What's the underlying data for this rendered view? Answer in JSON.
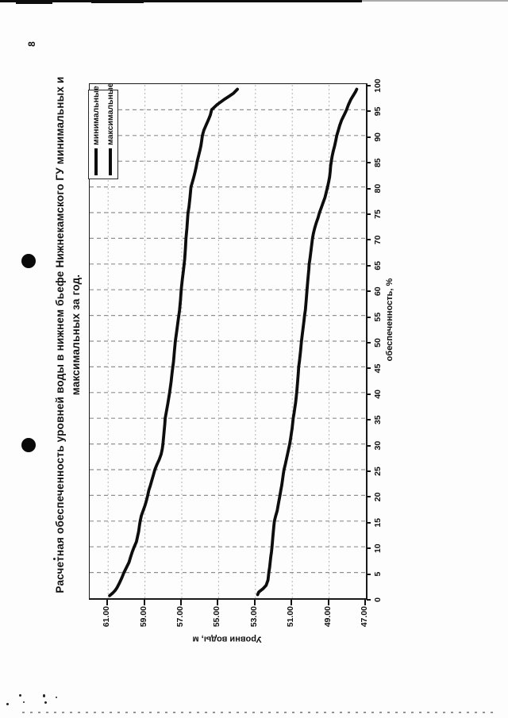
{
  "page": {
    "number": "8"
  },
  "chart_data": {
    "type": "line",
    "title": "Расчетная обеспеченность уровней воды в нижнем бьефе Нижнекамского ГУ  минимальных и максимальных за год.",
    "title_lines": [
      "Расчетная обеспеченность уровней воды в нижнем бьефе Нижнекамского ГУ  минимальных и",
      "максимальных за год."
    ],
    "xlabel": "обеспеченность, %",
    "ylabel": "Уровни воды, м",
    "xlim": [
      0,
      100
    ],
    "ylim": [
      47,
      62
    ],
    "x_ticks": [
      0,
      5,
      10,
      15,
      20,
      25,
      30,
      35,
      40,
      45,
      50,
      55,
      60,
      65,
      70,
      75,
      80,
      85,
      90,
      95,
      100
    ],
    "y_ticks": [
      61,
      59,
      57,
      55,
      53,
      51,
      49,
      47
    ],
    "y_tick_labels": [
      "61.00",
      "59.00",
      "57.00",
      "55.00",
      "53.00",
      "51.00",
      "49.00",
      "47.00"
    ],
    "grid": "on",
    "legend_position": "top-right-inside",
    "colors": {
      "ink": "#0d0d0d",
      "grid_dashed": "#8f8f8f",
      "grid_dotted": "#b3b3b3",
      "background": "#fdfdfd"
    },
    "series": [
      {
        "name": "минимальные",
        "points": [
          [
            0.7,
            52.88
          ],
          [
            1.2,
            52.82
          ],
          [
            1.8,
            52.6
          ],
          [
            2.5,
            52.42
          ],
          [
            3.5,
            52.32
          ],
          [
            5,
            52.27
          ],
          [
            6,
            52.23
          ],
          [
            7,
            52.2
          ],
          [
            8,
            52.17
          ],
          [
            9,
            52.13
          ],
          [
            10,
            52.1
          ],
          [
            12,
            52.05
          ],
          [
            14,
            52.0
          ],
          [
            15,
            51.97
          ],
          [
            16,
            51.9
          ],
          [
            17,
            51.82
          ],
          [
            18,
            51.77
          ],
          [
            19,
            51.72
          ],
          [
            20,
            51.67
          ],
          [
            21,
            51.62
          ],
          [
            22,
            51.57
          ],
          [
            23,
            51.53
          ],
          [
            24,
            51.49
          ],
          [
            25,
            51.45
          ],
          [
            26,
            51.38
          ],
          [
            27,
            51.32
          ],
          [
            28,
            51.26
          ],
          [
            29,
            51.2
          ],
          [
            30,
            51.14
          ],
          [
            31,
            51.09
          ],
          [
            32,
            51.05
          ],
          [
            33,
            51.01
          ],
          [
            34,
            50.98
          ],
          [
            35,
            50.95
          ],
          [
            36,
            50.9
          ],
          [
            37,
            50.86
          ],
          [
            38,
            50.82
          ],
          [
            39,
            50.79
          ],
          [
            40,
            50.76
          ],
          [
            42,
            50.71
          ],
          [
            44,
            50.67
          ],
          [
            45,
            50.65
          ],
          [
            46,
            50.61
          ],
          [
            48,
            50.55
          ],
          [
            50,
            50.5
          ],
          [
            52,
            50.43
          ],
          [
            54,
            50.36
          ],
          [
            55,
            50.33
          ],
          [
            56,
            50.29
          ],
          [
            58,
            50.24
          ],
          [
            60,
            50.2
          ],
          [
            62,
            50.15
          ],
          [
            64,
            50.1
          ],
          [
            65,
            50.08
          ],
          [
            66,
            50.04
          ],
          [
            68,
            49.97
          ],
          [
            70,
            49.9
          ],
          [
            71,
            49.85
          ],
          [
            72,
            49.78
          ],
          [
            73,
            49.7
          ],
          [
            74,
            49.6
          ],
          [
            75,
            49.52
          ],
          [
            76,
            49.42
          ],
          [
            77,
            49.32
          ],
          [
            78,
            49.22
          ],
          [
            79,
            49.15
          ],
          [
            80,
            49.08
          ],
          [
            81,
            49.02
          ],
          [
            82,
            48.97
          ],
          [
            83,
            48.94
          ],
          [
            84,
            48.92
          ],
          [
            85,
            48.88
          ],
          [
            86,
            48.83
          ],
          [
            87,
            48.77
          ],
          [
            88,
            48.7
          ],
          [
            89,
            48.64
          ],
          [
            90,
            48.58
          ],
          [
            91,
            48.5
          ],
          [
            92,
            48.42
          ],
          [
            93,
            48.32
          ],
          [
            94,
            48.18
          ],
          [
            95,
            48.05
          ],
          [
            96,
            47.95
          ],
          [
            97,
            47.82
          ],
          [
            98,
            47.65
          ],
          [
            98.6,
            47.55
          ],
          [
            99,
            47.5
          ]
        ]
      },
      {
        "name": "максимальные",
        "points": [
          [
            0.5,
            60.92
          ],
          [
            1,
            60.75
          ],
          [
            1.5,
            60.62
          ],
          [
            2,
            60.52
          ],
          [
            3,
            60.38
          ],
          [
            4,
            60.25
          ],
          [
            5,
            60.14
          ],
          [
            6,
            60.0
          ],
          [
            7,
            59.86
          ],
          [
            8,
            59.78
          ],
          [
            9,
            59.69
          ],
          [
            10,
            59.58
          ],
          [
            11,
            59.46
          ],
          [
            12,
            59.4
          ],
          [
            13,
            59.34
          ],
          [
            14,
            59.3
          ],
          [
            15,
            59.26
          ],
          [
            16,
            59.2
          ],
          [
            17,
            59.1
          ],
          [
            18,
            59.0
          ],
          [
            19,
            58.92
          ],
          [
            20,
            58.85
          ],
          [
            21,
            58.79
          ],
          [
            22,
            58.7
          ],
          [
            23,
            58.62
          ],
          [
            24,
            58.54
          ],
          [
            25,
            58.46
          ],
          [
            26,
            58.35
          ],
          [
            27,
            58.22
          ],
          [
            28,
            58.12
          ],
          [
            29,
            58.06
          ],
          [
            30,
            58.02
          ],
          [
            32,
            57.97
          ],
          [
            34,
            57.92
          ],
          [
            35,
            57.9
          ],
          [
            36,
            57.85
          ],
          [
            38,
            57.75
          ],
          [
            40,
            57.66
          ],
          [
            42,
            57.58
          ],
          [
            44,
            57.52
          ],
          [
            46,
            57.45
          ],
          [
            48,
            57.4
          ],
          [
            50,
            57.35
          ],
          [
            52,
            57.27
          ],
          [
            54,
            57.2
          ],
          [
            55,
            57.16
          ],
          [
            56,
            57.12
          ],
          [
            58,
            57.07
          ],
          [
            60,
            57.03
          ],
          [
            62,
            56.97
          ],
          [
            64,
            56.9
          ],
          [
            66,
            56.84
          ],
          [
            68,
            56.8
          ],
          [
            70,
            56.77
          ],
          [
            72,
            56.72
          ],
          [
            74,
            56.68
          ],
          [
            75,
            56.66
          ],
          [
            76,
            56.61
          ],
          [
            78,
            56.55
          ],
          [
            80,
            56.5
          ],
          [
            81,
            56.42
          ],
          [
            82,
            56.34
          ],
          [
            83,
            56.27
          ],
          [
            84,
            56.21
          ],
          [
            85,
            56.16
          ],
          [
            86,
            56.09
          ],
          [
            87,
            56.02
          ],
          [
            88,
            55.96
          ],
          [
            89,
            55.92
          ],
          [
            90,
            55.88
          ],
          [
            91,
            55.8
          ],
          [
            92,
            55.68
          ],
          [
            93,
            55.56
          ],
          [
            94,
            55.45
          ],
          [
            95,
            55.38
          ],
          [
            96,
            55.08
          ],
          [
            97,
            54.7
          ],
          [
            97.6,
            54.45
          ],
          [
            98.2,
            54.2
          ],
          [
            99,
            53.98
          ]
        ]
      }
    ]
  }
}
